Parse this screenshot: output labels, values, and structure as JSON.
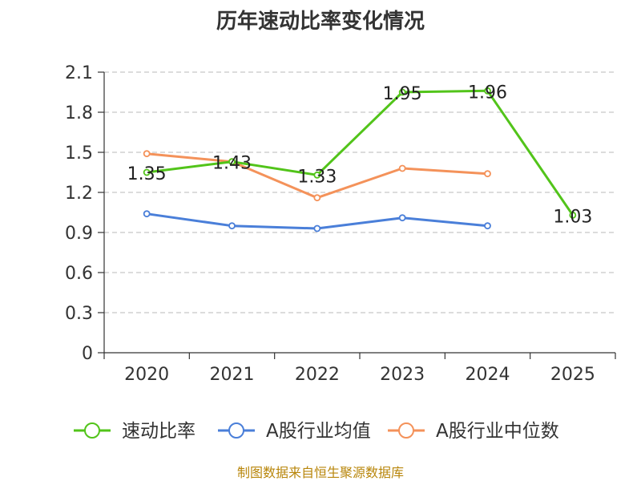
{
  "chart_data": {
    "type": "line",
    "title": "历年速动比率变化情况",
    "categories": [
      "2020",
      "2021",
      "2022",
      "2023",
      "2024",
      "2025"
    ],
    "ylim": [
      0,
      2.1
    ],
    "yticks": [
      "0",
      "0.3",
      "0.6",
      "0.9",
      "1.2",
      "1.5",
      "1.8",
      "2.1"
    ],
    "grid": "horizontal dashed",
    "legend_position": "bottom",
    "series": [
      {
        "name": "速动比率",
        "color": "#52c41a",
        "values": [
          1.35,
          1.43,
          1.33,
          1.95,
          1.96,
          1.03
        ],
        "labels": [
          "1.35",
          "1.43",
          "1.33",
          "1.95",
          "1.96",
          "1.03"
        ],
        "show_labels": true
      },
      {
        "name": "A股行业均值",
        "color": "#4a7fd9",
        "values": [
          1.04,
          0.95,
          0.93,
          1.01,
          0.95,
          null
        ],
        "show_labels": false
      },
      {
        "name": "A股行业中位数",
        "color": "#f4925a",
        "values": [
          1.49,
          1.43,
          1.16,
          1.38,
          1.34,
          null
        ],
        "show_labels": false
      }
    ]
  },
  "source_text": "制图数据来自恒生聚源数据库"
}
